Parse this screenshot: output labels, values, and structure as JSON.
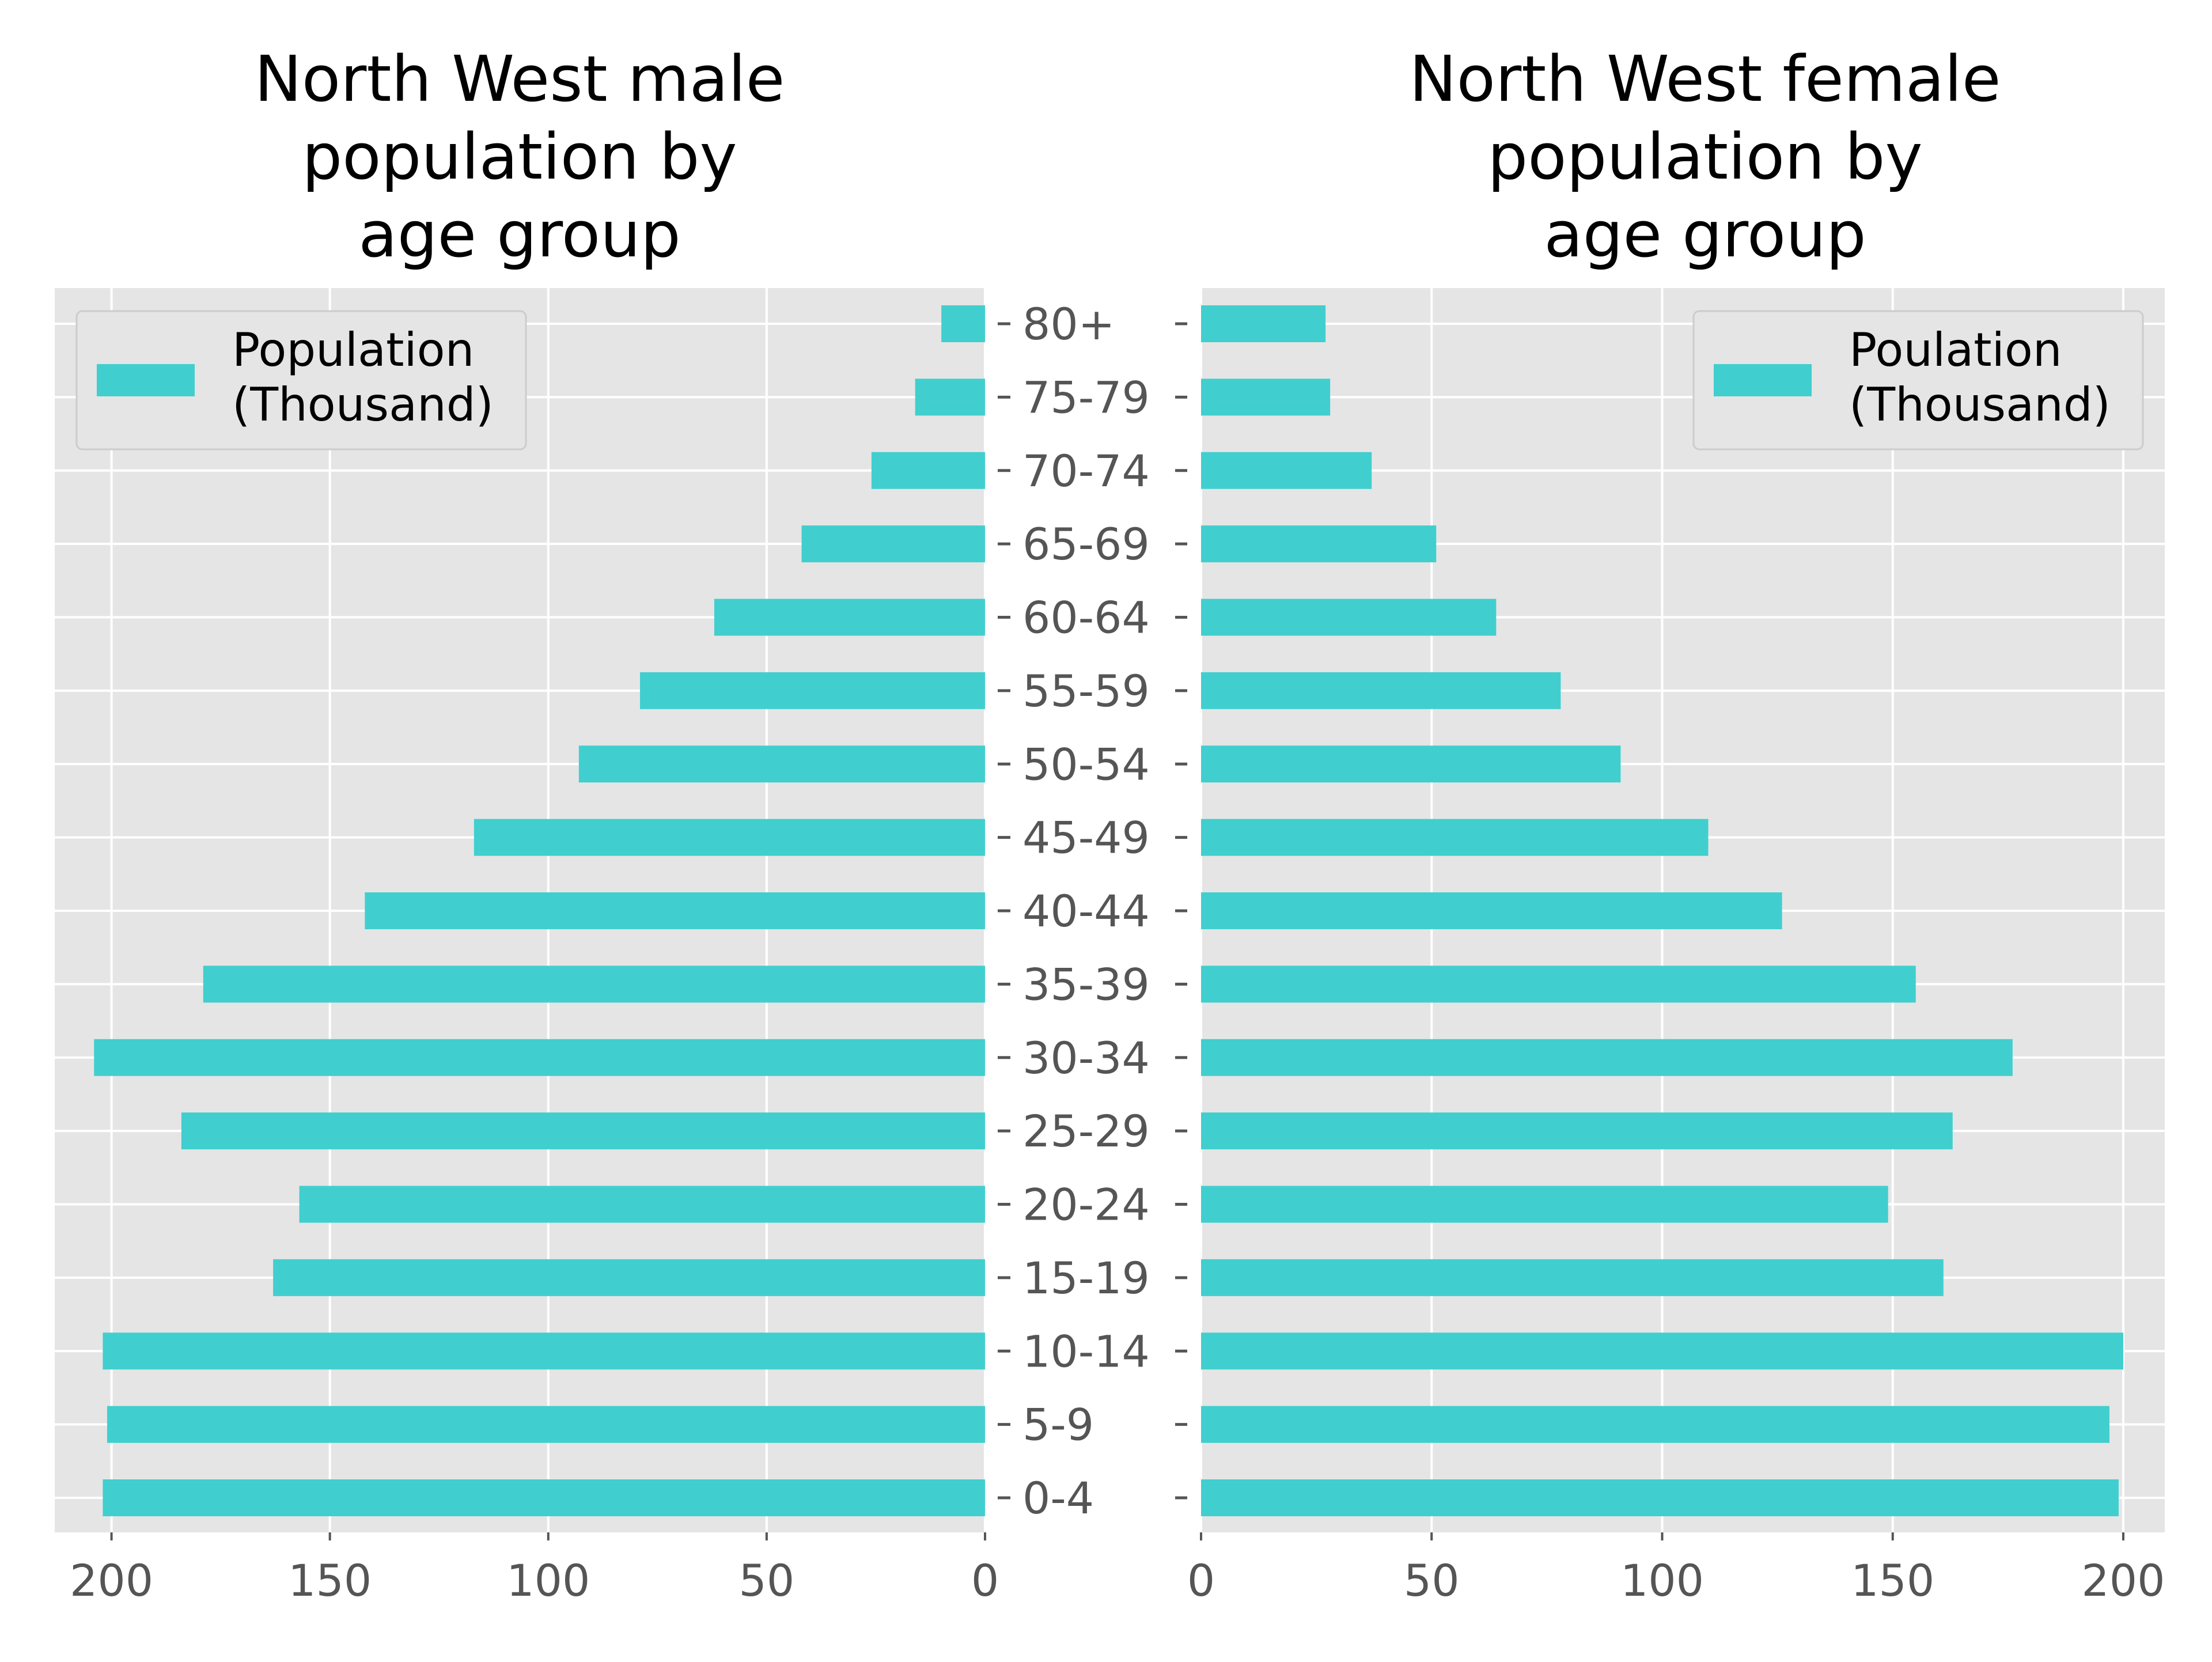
{
  "colors": {
    "bar": "#40cfce",
    "plot_background": "#e5e5e5",
    "grid": "#ffffff",
    "tick_text": "#555555",
    "legend_background": "#e5e5e5",
    "legend_border": "#cccccc"
  },
  "chart_data": [
    {
      "type": "bar",
      "orientation": "horizontal",
      "direction": "right-to-left",
      "title": [
        "North West male",
        "population by",
        "age group"
      ],
      "categories": [
        "0-4",
        "5-9",
        "10-14",
        "15-19",
        "20-24",
        "25-29",
        "30-34",
        "35-39",
        "40-44",
        "45-49",
        "50-54",
        "55-59",
        "60-64",
        "65-69",
        "70-74",
        "75-79",
        "80+"
      ],
      "values": [
        202,
        201,
        202,
        163,
        157,
        184,
        204,
        179,
        142,
        117,
        93,
        79,
        62,
        42,
        26,
        16,
        10
      ],
      "series_name": [
        "Population",
        "(Thousand)"
      ],
      "xlim": [
        0,
        213
      ],
      "xticks": [
        200,
        150,
        100,
        50,
        0
      ],
      "legend": "top-left",
      "grid": true
    },
    {
      "type": "bar",
      "orientation": "horizontal",
      "direction": "left-to-right",
      "title": [
        "North West female",
        "population by",
        "age group"
      ],
      "categories": [
        "0-4",
        "5-9",
        "10-14",
        "15-19",
        "20-24",
        "25-29",
        "30-34",
        "35-39",
        "40-44",
        "45-49",
        "50-54",
        "55-59",
        "60-64",
        "65-69",
        "70-74",
        "75-79",
        "80+"
      ],
      "values": [
        199,
        197,
        200,
        161,
        149,
        163,
        176,
        155,
        126,
        110,
        91,
        78,
        64,
        51,
        37,
        28,
        27
      ],
      "series_name": [
        "Poulation",
        "(Thousand)"
      ],
      "xlim": [
        0,
        209
      ],
      "xticks": [
        0,
        50,
        100,
        150,
        200
      ],
      "legend": "top-right",
      "grid": true
    }
  ]
}
